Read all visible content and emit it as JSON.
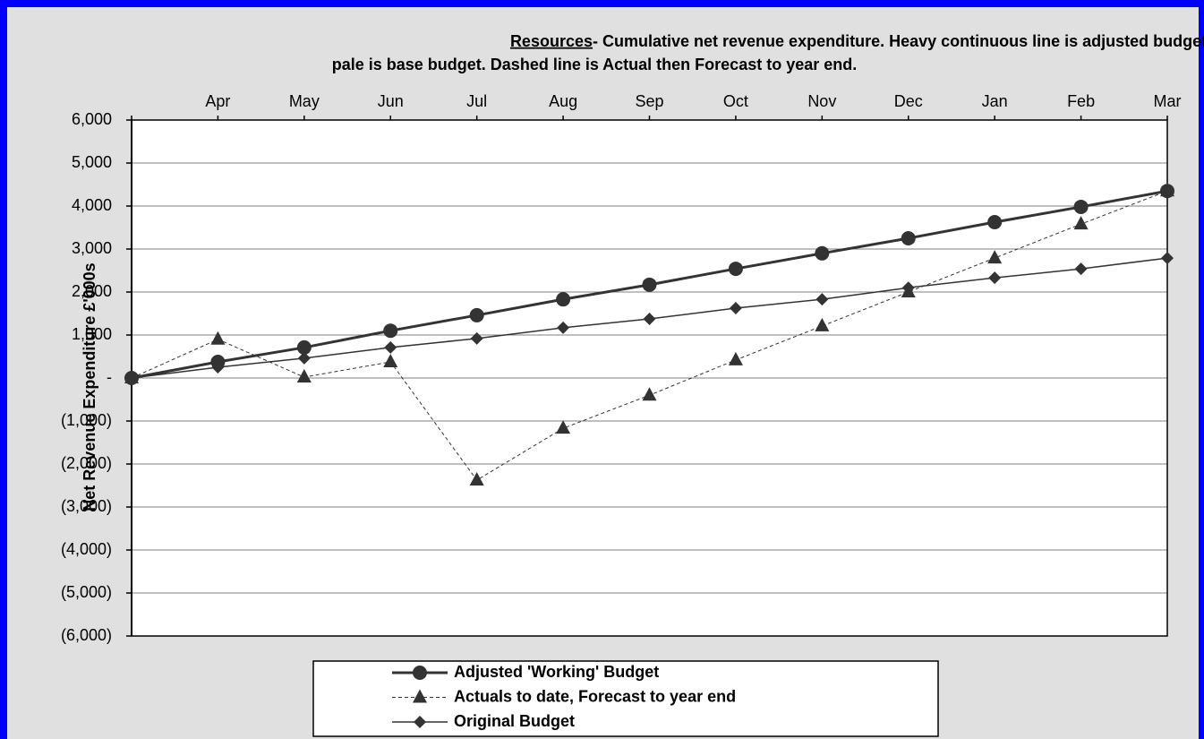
{
  "chart_data": {
    "type": "line",
    "title_emphasis": "Resources",
    "title": "- Cumulative net revenue expenditure. Heavy continuous line is adjusted budget,",
    "subtitle": "pale is base budget. Dashed line is Actual then Forecast to year end.",
    "y_label": "Net Revenue Expenditure  £'000s",
    "categories": [
      null,
      "Apr",
      "May",
      "Jun",
      "Jul",
      "Aug",
      "Sep",
      "Oct",
      "Nov",
      "Dec",
      "Jan",
      "Feb",
      "Mar"
    ],
    "ylim": [
      -6000,
      6000
    ],
    "yticks": [
      {
        "value": -6000,
        "label": "(6,000)"
      },
      {
        "value": -5000,
        "label": "(5,000)"
      },
      {
        "value": -4000,
        "label": "(4,000)"
      },
      {
        "value": -3000,
        "label": "(3,000)"
      },
      {
        "value": -2000,
        "label": "(2,000)"
      },
      {
        "value": -1000,
        "label": "(1,000)"
      },
      {
        "value": 0,
        "label": "-"
      },
      {
        "value": 1000,
        "label": "1,000"
      },
      {
        "value": 2000,
        "label": "2,000"
      },
      {
        "value": 3000,
        "label": "3,000"
      },
      {
        "value": 4000,
        "label": "4,000"
      },
      {
        "value": 5000,
        "label": "5,000"
      },
      {
        "value": 6000,
        "label": "6,000"
      }
    ],
    "grid": true,
    "legend": "bottom",
    "series": [
      {
        "name": "Adjusted 'Working' Budget",
        "color": "#333333",
        "line_style": "solid",
        "line_width": 3,
        "marker": "circle",
        "values": [
          0,
          375,
          710,
          1100,
          1460,
          1830,
          2170,
          2540,
          2900,
          3250,
          3625,
          3980,
          4350
        ]
      },
      {
        "name": "Actuals to date, Forecast to year end",
        "color": "#333333",
        "line_style": "dashed",
        "line_width": 1,
        "marker": "triangle",
        "values": [
          0,
          900,
          20,
          375,
          -2375,
          -1170,
          -400,
          420,
          1210,
          2000,
          2790,
          3580,
          4350
        ]
      },
      {
        "name": "Original Budget",
        "color": "#333333",
        "line_style": "solid",
        "line_width": 1.5,
        "marker": "diamond",
        "values": [
          0,
          250,
          460,
          710,
          920,
          1170,
          1375,
          1625,
          1830,
          2100,
          2330,
          2540,
          2790
        ]
      }
    ]
  }
}
